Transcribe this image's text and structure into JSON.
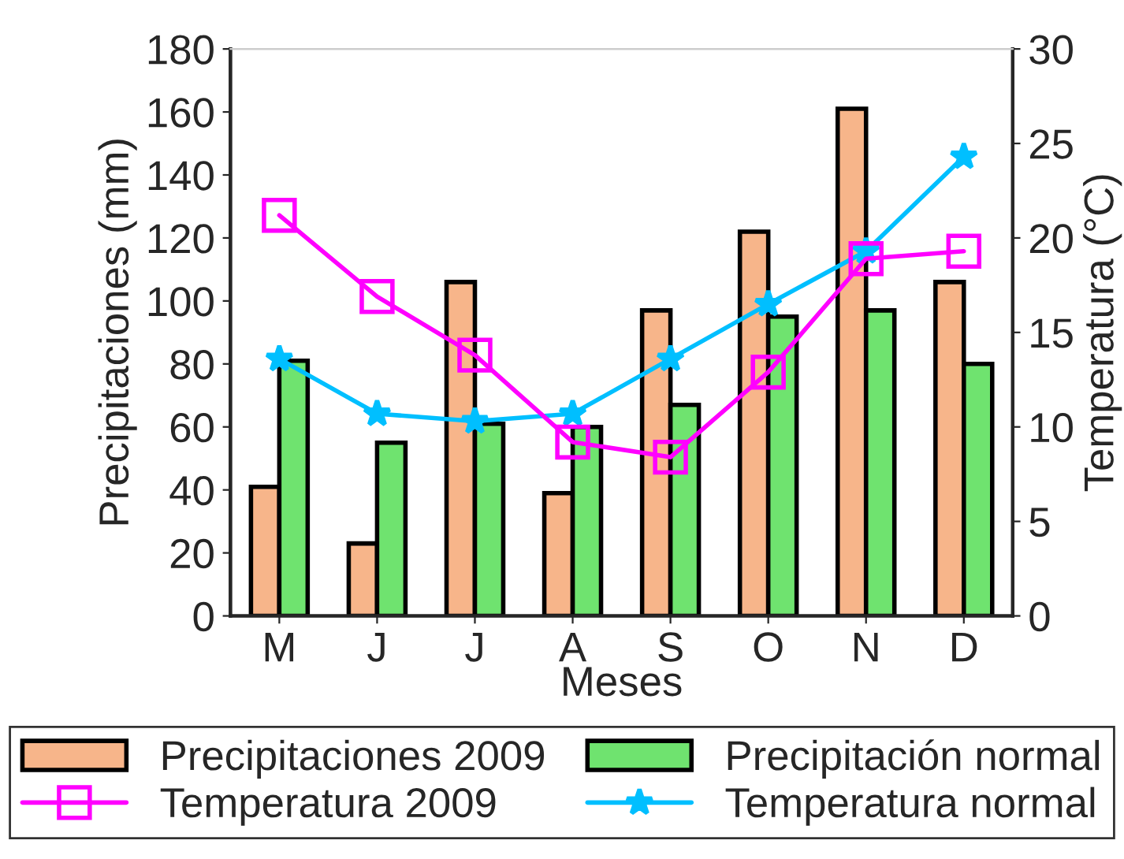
{
  "chart_data": {
    "type": "bar",
    "xlabel": "Meses",
    "ylabel": "Precipitaciones (mm)",
    "y2label": "Temperatura (°C)",
    "categories": [
      "M",
      "J",
      "J",
      "A",
      "S",
      "O",
      "N",
      "D"
    ],
    "series": [
      {
        "name": "Precipitaciones 2009",
        "color": "#f7b58a",
        "values": [
          41,
          23,
          106,
          39,
          97,
          122,
          161,
          106
        ]
      },
      {
        "name": "Precipitación normal",
        "color": "#6fe36f",
        "values": [
          81,
          55,
          61,
          60,
          67,
          95,
          97,
          80
        ]
      },
      {
        "name": "Temperatura 2009",
        "type": "line",
        "axis": "y2",
        "color": "#ff00ff",
        "marker": "square",
        "values": [
          21.2,
          16.9,
          13.8,
          9.2,
          8.4,
          12.9,
          18.9,
          19.3
        ]
      },
      {
        "name": "Temperatura normal",
        "type": "line",
        "axis": "y2",
        "color": "#00bfff",
        "marker": "star",
        "values": [
          13.6,
          10.7,
          10.3,
          10.7,
          13.6,
          16.5,
          19.3,
          24.3
        ]
      }
    ],
    "ylim": [
      0,
      180
    ],
    "yticks": [
      0,
      20,
      40,
      60,
      80,
      100,
      120,
      140,
      160,
      180
    ],
    "y2lim": [
      0,
      30
    ],
    "y2ticks": [
      0,
      5,
      10,
      15,
      20,
      25,
      30
    ],
    "grid": false,
    "legend": "bottom"
  }
}
